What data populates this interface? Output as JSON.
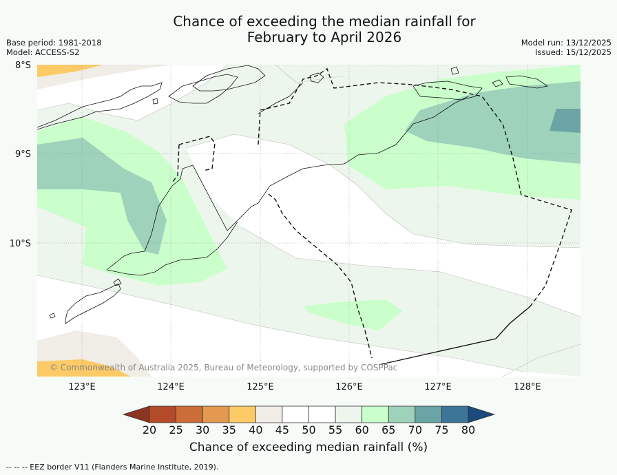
{
  "header": {
    "title_line1": "Chance of exceeding the median rainfall for",
    "title_line2": "February to April 2026",
    "base_period": "Base period: 1981-2018",
    "model": "Model: ACCESS-S2",
    "model_run": "Model run: 13/12/2025",
    "issued": "Issued: 15/12/2025"
  },
  "map": {
    "lat_labels": [
      "8°S",
      "9°S",
      "10°S"
    ],
    "lon_labels": [
      "123°E",
      "124°E",
      "125°E",
      "126°E",
      "127°E",
      "128°E"
    ],
    "copyright": "© Commonwealth of Australia 2025, Bureau of Meteorology, supported by COSPPac"
  },
  "colorbar": {
    "ticks": [
      "20",
      "25",
      "30",
      "35",
      "40",
      "45",
      "50",
      "55",
      "60",
      "65",
      "70",
      "75",
      "80"
    ],
    "colors": [
      "#b34a2a",
      "#cc6c38",
      "#e3994f",
      "#fccb67",
      "#f0ece6",
      "#ffffff",
      "#ffffff",
      "#edf6ec",
      "#caffcb",
      "#9ed2bb",
      "#6aa4a4",
      "#3d7598"
    ],
    "low_color": "#8c3520",
    "high_color": "#1c4a7c",
    "label": "Chance of exceeding median rainfall (%)"
  },
  "footer": {
    "legend": "--  --  -- EEZ border V11 (Flanders Marine Institute, 2019)."
  }
}
